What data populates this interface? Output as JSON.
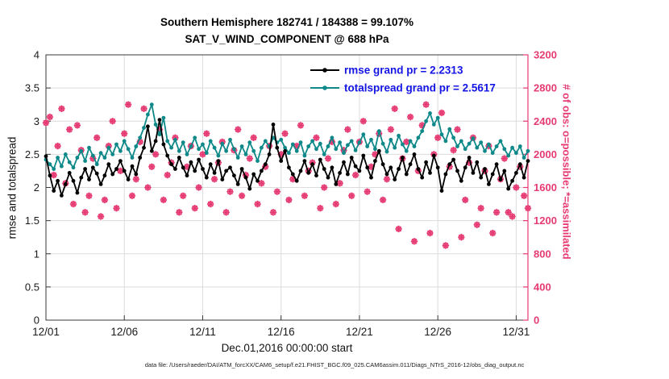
{
  "title": {
    "line1": "Southern Hemisphere 182741 / 184388 = 99.107%",
    "line2": "SAT_V_WIND_COMPONENT @ 688 hPa"
  },
  "caption": "data file: /Users/raeder/DAI/ATM_forcXX/CAM6_setup/f.e21.FHIST_BGC.f09_025.CAM6assim.011/Diags_NTrS_2016-12/obs_diag_output.nc",
  "chart_data": {
    "type": "line",
    "title": "Southern Hemisphere 182741 / 184388 = 99.107%",
    "subtitle": "SAT_V_WIND_COMPONENT @ 688 hPa",
    "xlabel": "Dec.01,2016 00:00:00 start",
    "x_ticks": [
      "12/01",
      "12/06",
      "12/11",
      "12/16",
      "12/21",
      "12/26",
      "12/31"
    ],
    "x_tick_days": [
      0,
      5,
      10,
      15,
      20,
      25,
      30
    ],
    "x_range_days": [
      0,
      30.75
    ],
    "t_step_days": 0.25,
    "grid": true,
    "grid_color": "#dcdcdc",
    "left_axis": {
      "label": "rmse and totalspread",
      "min": 0,
      "max": 4,
      "ticks": [
        0,
        0.5,
        1,
        1.5,
        2,
        2.5,
        3,
        3.5,
        4
      ],
      "color": "#1a1a1a"
    },
    "right_axis": {
      "label": "# of obs: o=possible; *=assimilated",
      "min": 0,
      "max": 3200,
      "ticks": [
        0,
        400,
        800,
        1200,
        1600,
        2000,
        2400,
        2800,
        3200
      ],
      "color": "#e63b72"
    },
    "legend": {
      "position": "top-center-inside",
      "text_color": "#1515e6"
    },
    "series": [
      {
        "name": "rmse",
        "legend_label": "rmse grand pr = 2.2313",
        "color": "#000000",
        "marker": "filled-circle",
        "axis": "left",
        "values": [
          2.47,
          2.18,
          1.95,
          2.1,
          1.88,
          2.05,
          2.22,
          2.1,
          1.92,
          2.15,
          2.28,
          2.12,
          2.3,
          2.21,
          2.05,
          2.18,
          2.35,
          2.2,
          2.28,
          2.4,
          2.25,
          2.12,
          2.32,
          2.2,
          2.45,
          2.6,
          2.92,
          2.55,
          2.7,
          3.02,
          2.65,
          2.48,
          2.35,
          2.28,
          2.45,
          2.3,
          2.18,
          2.38,
          2.25,
          2.42,
          2.28,
          2.15,
          2.35,
          2.22,
          2.4,
          2.12,
          2.25,
          2.3,
          2.18,
          2.05,
          2.28,
          2.15,
          1.98,
          2.2,
          2.1,
          2.25,
          2.35,
          2.5,
          2.95,
          2.6,
          2.4,
          2.55,
          2.3,
          2.2,
          2.1,
          2.25,
          2.4,
          2.22,
          2.35,
          2.18,
          2.42,
          2.28,
          2.15,
          2.3,
          2.05,
          2.22,
          2.38,
          2.2,
          2.45,
          2.32,
          2.25,
          2.48,
          2.3,
          2.15,
          2.4,
          2.55,
          2.35,
          2.2,
          2.3,
          2.12,
          2.28,
          2.45,
          2.2,
          2.35,
          2.5,
          2.28,
          2.15,
          2.38,
          2.22,
          2.48,
          2.3,
          1.95,
          2.2,
          2.35,
          2.42,
          2.25,
          2.1,
          2.3,
          2.45,
          2.22,
          2.38,
          2.15,
          2.28,
          2.05,
          2.2,
          2.35,
          2.12,
          2.25,
          1.98,
          2.1,
          2.22,
          2.35,
          2.15,
          2.4
        ]
      },
      {
        "name": "totalspread",
        "legend_label": "totalspread grand pr = 2.5617",
        "color": "#0e8888",
        "marker": "filled-circle",
        "axis": "left",
        "values": [
          2.42,
          2.35,
          2.28,
          2.45,
          2.32,
          2.5,
          2.38,
          2.3,
          2.45,
          2.55,
          2.4,
          2.6,
          2.48,
          2.35,
          2.52,
          2.45,
          2.6,
          2.5,
          2.65,
          2.55,
          2.7,
          2.58,
          2.45,
          2.62,
          2.75,
          2.9,
          3.1,
          3.25,
          2.95,
          2.8,
          3.05,
          2.7,
          2.6,
          2.72,
          2.55,
          2.68,
          2.5,
          2.62,
          2.75,
          2.58,
          2.65,
          2.52,
          2.7,
          2.6,
          2.48,
          2.66,
          2.55,
          2.72,
          2.58,
          2.45,
          2.62,
          2.5,
          2.68,
          2.55,
          2.4,
          2.6,
          2.7,
          2.62,
          2.75,
          2.68,
          2.72,
          2.6,
          2.52,
          2.65,
          2.55,
          2.68,
          2.48,
          2.62,
          2.7,
          2.58,
          2.66,
          2.5,
          2.62,
          2.75,
          2.58,
          2.68,
          2.52,
          2.64,
          2.7,
          2.56,
          2.68,
          2.8,
          2.62,
          2.72,
          2.58,
          2.85,
          2.66,
          2.54,
          2.72,
          2.6,
          2.78,
          2.65,
          2.55,
          2.7,
          2.62,
          2.75,
          2.85,
          3.0,
          3.12,
          2.95,
          3.05,
          2.8,
          2.7,
          2.88,
          2.75,
          2.62,
          2.7,
          2.58,
          2.66,
          2.74,
          2.6,
          2.68,
          2.55,
          2.65,
          2.52,
          2.62,
          2.7,
          2.58,
          2.48,
          2.6,
          2.52,
          2.62,
          2.45,
          2.55
        ]
      },
      {
        "name": "observations",
        "legend_label": "# of obs: o=possible; *=assimilated",
        "color": "#e63b72",
        "marker": "circle-and-asterisk",
        "axis": "right",
        "values": [
          2380,
          2450,
          1750,
          2100,
          2550,
          1650,
          2300,
          1400,
          2350,
          2050,
          1300,
          1500,
          1950,
          2200,
          1250,
          1450,
          2100,
          2400,
          1350,
          1800,
          2250,
          2600,
          1500,
          1700,
          2150,
          2550,
          1600,
          1850,
          2000,
          2300,
          1450,
          1750,
          1900,
          2200,
          1300,
          1500,
          1850,
          2100,
          1350,
          1600,
          2000,
          2250,
          1400,
          1700,
          1900,
          2150,
          1300,
          1550,
          2050,
          2300,
          1500,
          1750,
          1950,
          2200,
          1400,
          1650,
          1850,
          2100,
          1300,
          1550,
          2000,
          2250,
          1450,
          1700,
          2100,
          2350,
          1500,
          1800,
          1900,
          2200,
          1350,
          1600,
          1950,
          2150,
          1400,
          1650,
          2050,
          2300,
          1500,
          1750,
          2150,
          2400,
          1550,
          1850,
          2000,
          2250,
          1450,
          1700,
          2300,
          2550,
          1100,
          1950,
          2150,
          2450,
          950,
          1800,
          2350,
          2600,
          1050,
          2000,
          2200,
          2500,
          900,
          1850,
          2050,
          2300,
          1000,
          1450,
          1900,
          2200,
          1150,
          1350,
          1800,
          2100,
          1050,
          1300,
          1700,
          1950,
          1300,
          1250,
          1600,
          1850,
          1500,
          1350
        ]
      }
    ]
  }
}
